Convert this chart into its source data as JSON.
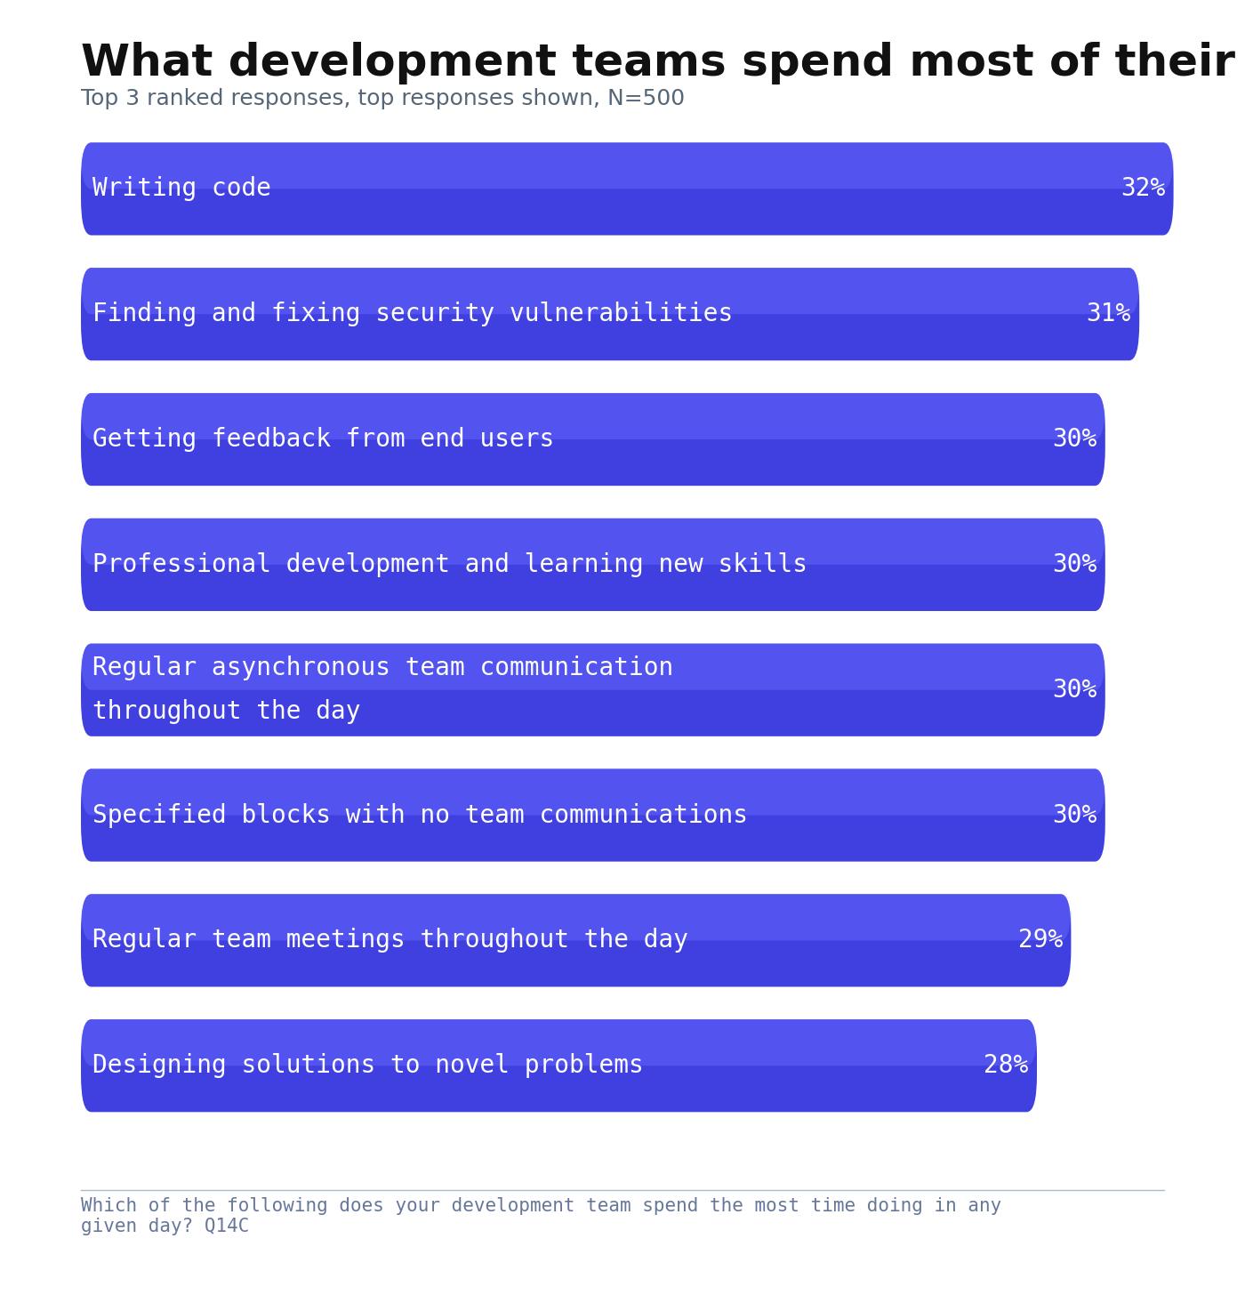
{
  "title": "What development teams spend most of their time doing",
  "subtitle": "Top 3 ranked responses, top responses shown, N=500",
  "footnote": "Which of the following does your development team spend the most time doing in any\ngiven day? Q14C",
  "categories": [
    "Writing code",
    "Finding and fixing security vulnerabilities",
    "Getting feedback from end users",
    "Professional development and learning new skills",
    "Regular asynchronous team communication\nthroughout the day",
    "Specified blocks with no team communications",
    "Regular team meetings throughout the day",
    "Designing solutions to novel problems"
  ],
  "values": [
    32,
    31,
    30,
    30,
    30,
    30,
    29,
    28
  ],
  "bar_color": "#4040e0",
  "bar_color_top": "#6666ff",
  "text_color": "#ffffff",
  "title_color": "#111111",
  "subtitle_color": "#556677",
  "footnote_color": "#667799",
  "background_color": "#ffffff",
  "title_fontsize": 36,
  "subtitle_fontsize": 18,
  "bar_label_fontsize": 20,
  "bar_text_fontsize": 20,
  "footnote_fontsize": 15,
  "xlim_max": 33
}
